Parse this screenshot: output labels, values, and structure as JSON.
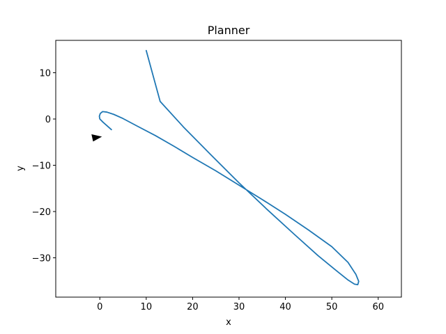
{
  "chart_data": {
    "type": "line",
    "title": "Planner",
    "xlabel": "x",
    "ylabel": "y",
    "xlim": [
      -9.5,
      65
    ],
    "ylim": [
      -38.5,
      17
    ],
    "xticks": [
      0,
      10,
      20,
      30,
      40,
      50,
      60
    ],
    "yticks": [
      10,
      0,
      -10,
      -20,
      -30
    ],
    "ytick_labels": [
      "10",
      "0",
      "−10",
      "−20",
      "−30"
    ],
    "grid": false,
    "series": [
      {
        "color": "#1f77b4",
        "points": [
          [
            2.5,
            -2.3
          ],
          [
            0.7,
            -0.7
          ],
          [
            0.0,
            0.0
          ],
          [
            -0.1,
            0.6
          ],
          [
            0.1,
            1.2
          ],
          [
            0.6,
            1.6
          ],
          [
            1.5,
            1.5
          ],
          [
            3.0,
            1.0
          ],
          [
            5.0,
            0.1
          ],
          [
            8.0,
            -1.5
          ],
          [
            12.0,
            -3.6
          ],
          [
            16.0,
            -5.9
          ],
          [
            20.0,
            -8.3
          ],
          [
            25.0,
            -11.2
          ],
          [
            30.0,
            -14.3
          ],
          [
            35.0,
            -17.4
          ],
          [
            40.0,
            -20.6
          ],
          [
            45.0,
            -24.0
          ],
          [
            50.0,
            -27.6
          ],
          [
            53.5,
            -31.0
          ],
          [
            55.2,
            -33.6
          ],
          [
            55.8,
            -35.1
          ],
          [
            55.6,
            -35.8
          ],
          [
            54.9,
            -35.7
          ],
          [
            53.5,
            -34.8
          ],
          [
            51.0,
            -32.8
          ],
          [
            47.0,
            -29.5
          ],
          [
            42.0,
            -25.0
          ],
          [
            36.0,
            -19.5
          ],
          [
            30.0,
            -13.8
          ],
          [
            24.0,
            -7.8
          ],
          [
            18.0,
            -1.7
          ],
          [
            13.0,
            3.8
          ],
          [
            10.0,
            14.8
          ]
        ]
      }
    ],
    "marker": {
      "shape": "triangle",
      "color": "#000000",
      "x": -0.5,
      "y": -4.0,
      "direction": "right"
    }
  }
}
